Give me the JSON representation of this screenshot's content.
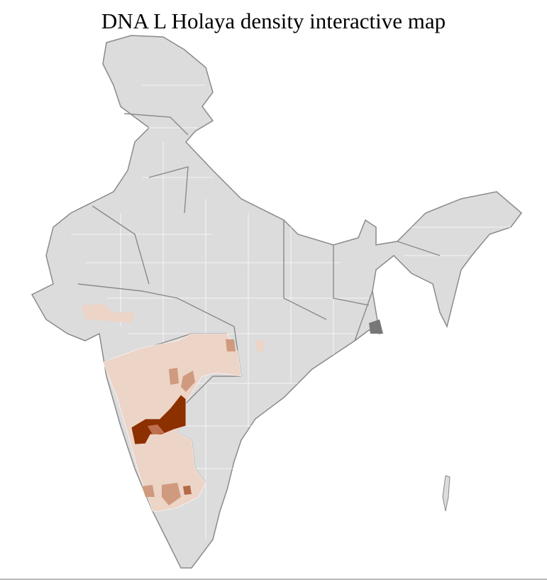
{
  "title": "DNA L Holaya density interactive map",
  "colors": {
    "no_data": "#dcdcdc",
    "border": "#8a8a8a",
    "district_line": "#ffffff",
    "low": "#ecd4c7",
    "medium": "#d09a7e",
    "high": "#8c3000"
  }
}
